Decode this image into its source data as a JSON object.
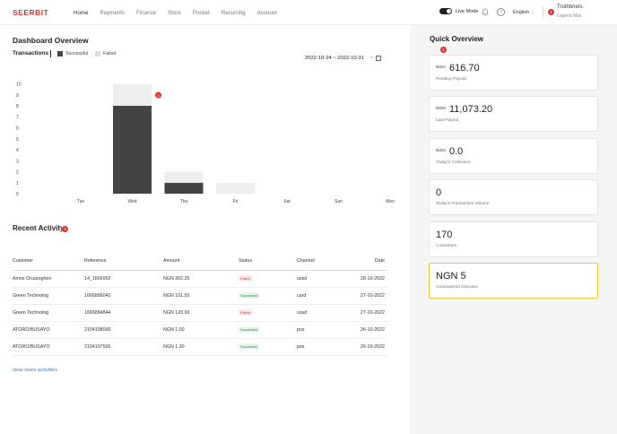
{
  "brand": {
    "logo": "SEERBIT"
  },
  "nav": [
    "Home",
    "Payments",
    "Finance",
    "Store",
    "Pocket",
    "Recurring",
    "Account"
  ],
  "header": {
    "live_mode_label": "Live Mode",
    "help": "?",
    "language": "English",
    "user_badge": "1",
    "user_name": "Truthbriers",
    "user_role": "Legend Max"
  },
  "dashboard": {
    "title": "Dashboard Overview",
    "transactions_label": "Transactions",
    "legend_success": "Successful",
    "legend_failed": "Failed",
    "date_range": "2022-10-24 ~ 2022-10-31",
    "clear": "×"
  },
  "chart_data": {
    "type": "bar",
    "stacked": true,
    "categories": [
      "Tue",
      "Wed",
      "Thu",
      "Fri",
      "Sat",
      "Sun",
      "Mon"
    ],
    "series": [
      {
        "name": "Successful",
        "values": [
          0,
          8,
          1,
          0,
          0,
          0,
          0
        ]
      },
      {
        "name": "Failed",
        "values": [
          0,
          2,
          1,
          1,
          0,
          0,
          0
        ]
      }
    ],
    "yticks": [
      0,
      1,
      2,
      3,
      4,
      5,
      6,
      7,
      8,
      9,
      10
    ],
    "ylim": [
      0,
      10
    ],
    "annotation": {
      "category": "Wed",
      "text": "3"
    },
    "colors": {
      "Successful": "#444444",
      "Failed": "#eeeeee"
    },
    "grid": false,
    "legend": "top-left"
  },
  "activity": {
    "title": "Recent Activity",
    "badge": "4",
    "columns": [
      "Customer",
      "Reference",
      "Amount",
      "Status",
      "Channel",
      "Date"
    ],
    "rows": [
      {
        "customer": "Amos Oruaroghen",
        "reference": "14_1666952",
        "amount": "NGN 302.25",
        "status": "Failed",
        "channel": "ussd",
        "date": "28-10-2022"
      },
      {
        "customer": "Green Technolog",
        "reference": "1666886042",
        "amount": "NGN 101.50",
        "status": "Successful",
        "channel": "card",
        "date": "27-10-2022"
      },
      {
        "customer": "Green Technolog",
        "reference": "1666884844",
        "amount": "NGN 120.90",
        "status": "Failed",
        "channel": "ussd",
        "date": "27-10-2022"
      },
      {
        "customer": "ATORO/BUSAYO",
        "reference": "2104198000",
        "amount": "NGN 1.00",
        "status": "Successful",
        "channel": "pos",
        "date": "26-10-2022"
      },
      {
        "customer": "ATORO/BUSAYO",
        "reference": "2104197500",
        "amount": "NGN 1.30",
        "status": "Successful",
        "channel": "pos",
        "date": "26-10-2022"
      }
    ],
    "view_more": "view more activities"
  },
  "quick_overview": {
    "title": "Quick Overview",
    "badge": "2",
    "cards": [
      {
        "currency": "NGN",
        "value": "616.70",
        "label": "Pending Payout"
      },
      {
        "currency": "NGN",
        "value": "11,073.20",
        "label": "Last Payout"
      },
      {
        "currency": "NGN",
        "value": "0.0",
        "label": "Today's Collection"
      },
      {
        "currency": "",
        "value": "0",
        "label": "Today's Transaction Volume"
      },
      {
        "currency": "",
        "value": "170",
        "label": "Customers"
      },
      {
        "currency": "",
        "value": "NGN 5",
        "label": "Unanswered Disputes"
      }
    ]
  }
}
